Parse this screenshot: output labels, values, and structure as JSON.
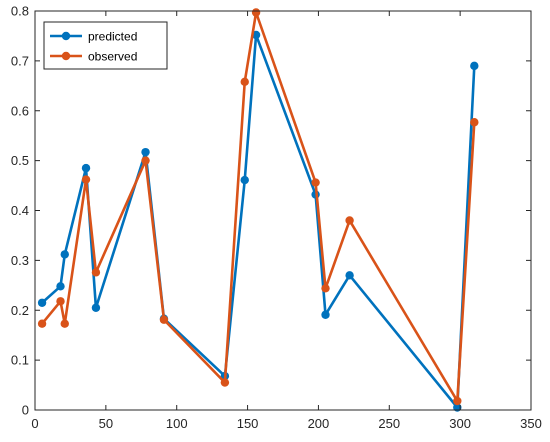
{
  "chart_data": {
    "type": "line",
    "title": "",
    "xlabel": "",
    "ylabel": "",
    "xlim": [
      0,
      350
    ],
    "ylim": [
      0,
      0.8
    ],
    "xticks": [
      0,
      50,
      100,
      150,
      200,
      250,
      300,
      350
    ],
    "yticks": [
      0,
      0.1,
      0.2,
      0.3,
      0.4,
      0.5,
      0.6,
      0.7,
      0.8
    ],
    "grid": false,
    "legend_position": "top-left",
    "series": [
      {
        "name": "predicted",
        "color": "#0072BD",
        "x": [
          5,
          18,
          21,
          36,
          43,
          78,
          91,
          134,
          148,
          156,
          198,
          205,
          222,
          298,
          310
        ],
        "y": [
          0.215,
          0.248,
          0.312,
          0.485,
          0.205,
          0.517,
          0.183,
          0.068,
          0.461,
          0.752,
          0.432,
          0.191,
          0.27,
          0.005,
          0.69
        ]
      },
      {
        "name": "observed",
        "color": "#D95319",
        "x": [
          5,
          18,
          21,
          36,
          43,
          78,
          91,
          134,
          148,
          156,
          198,
          205,
          222,
          298,
          310
        ],
        "y": [
          0.173,
          0.218,
          0.173,
          0.462,
          0.276,
          0.5,
          0.181,
          0.055,
          0.658,
          0.797,
          0.456,
          0.244,
          0.38,
          0.018,
          0.577
        ]
      }
    ]
  }
}
